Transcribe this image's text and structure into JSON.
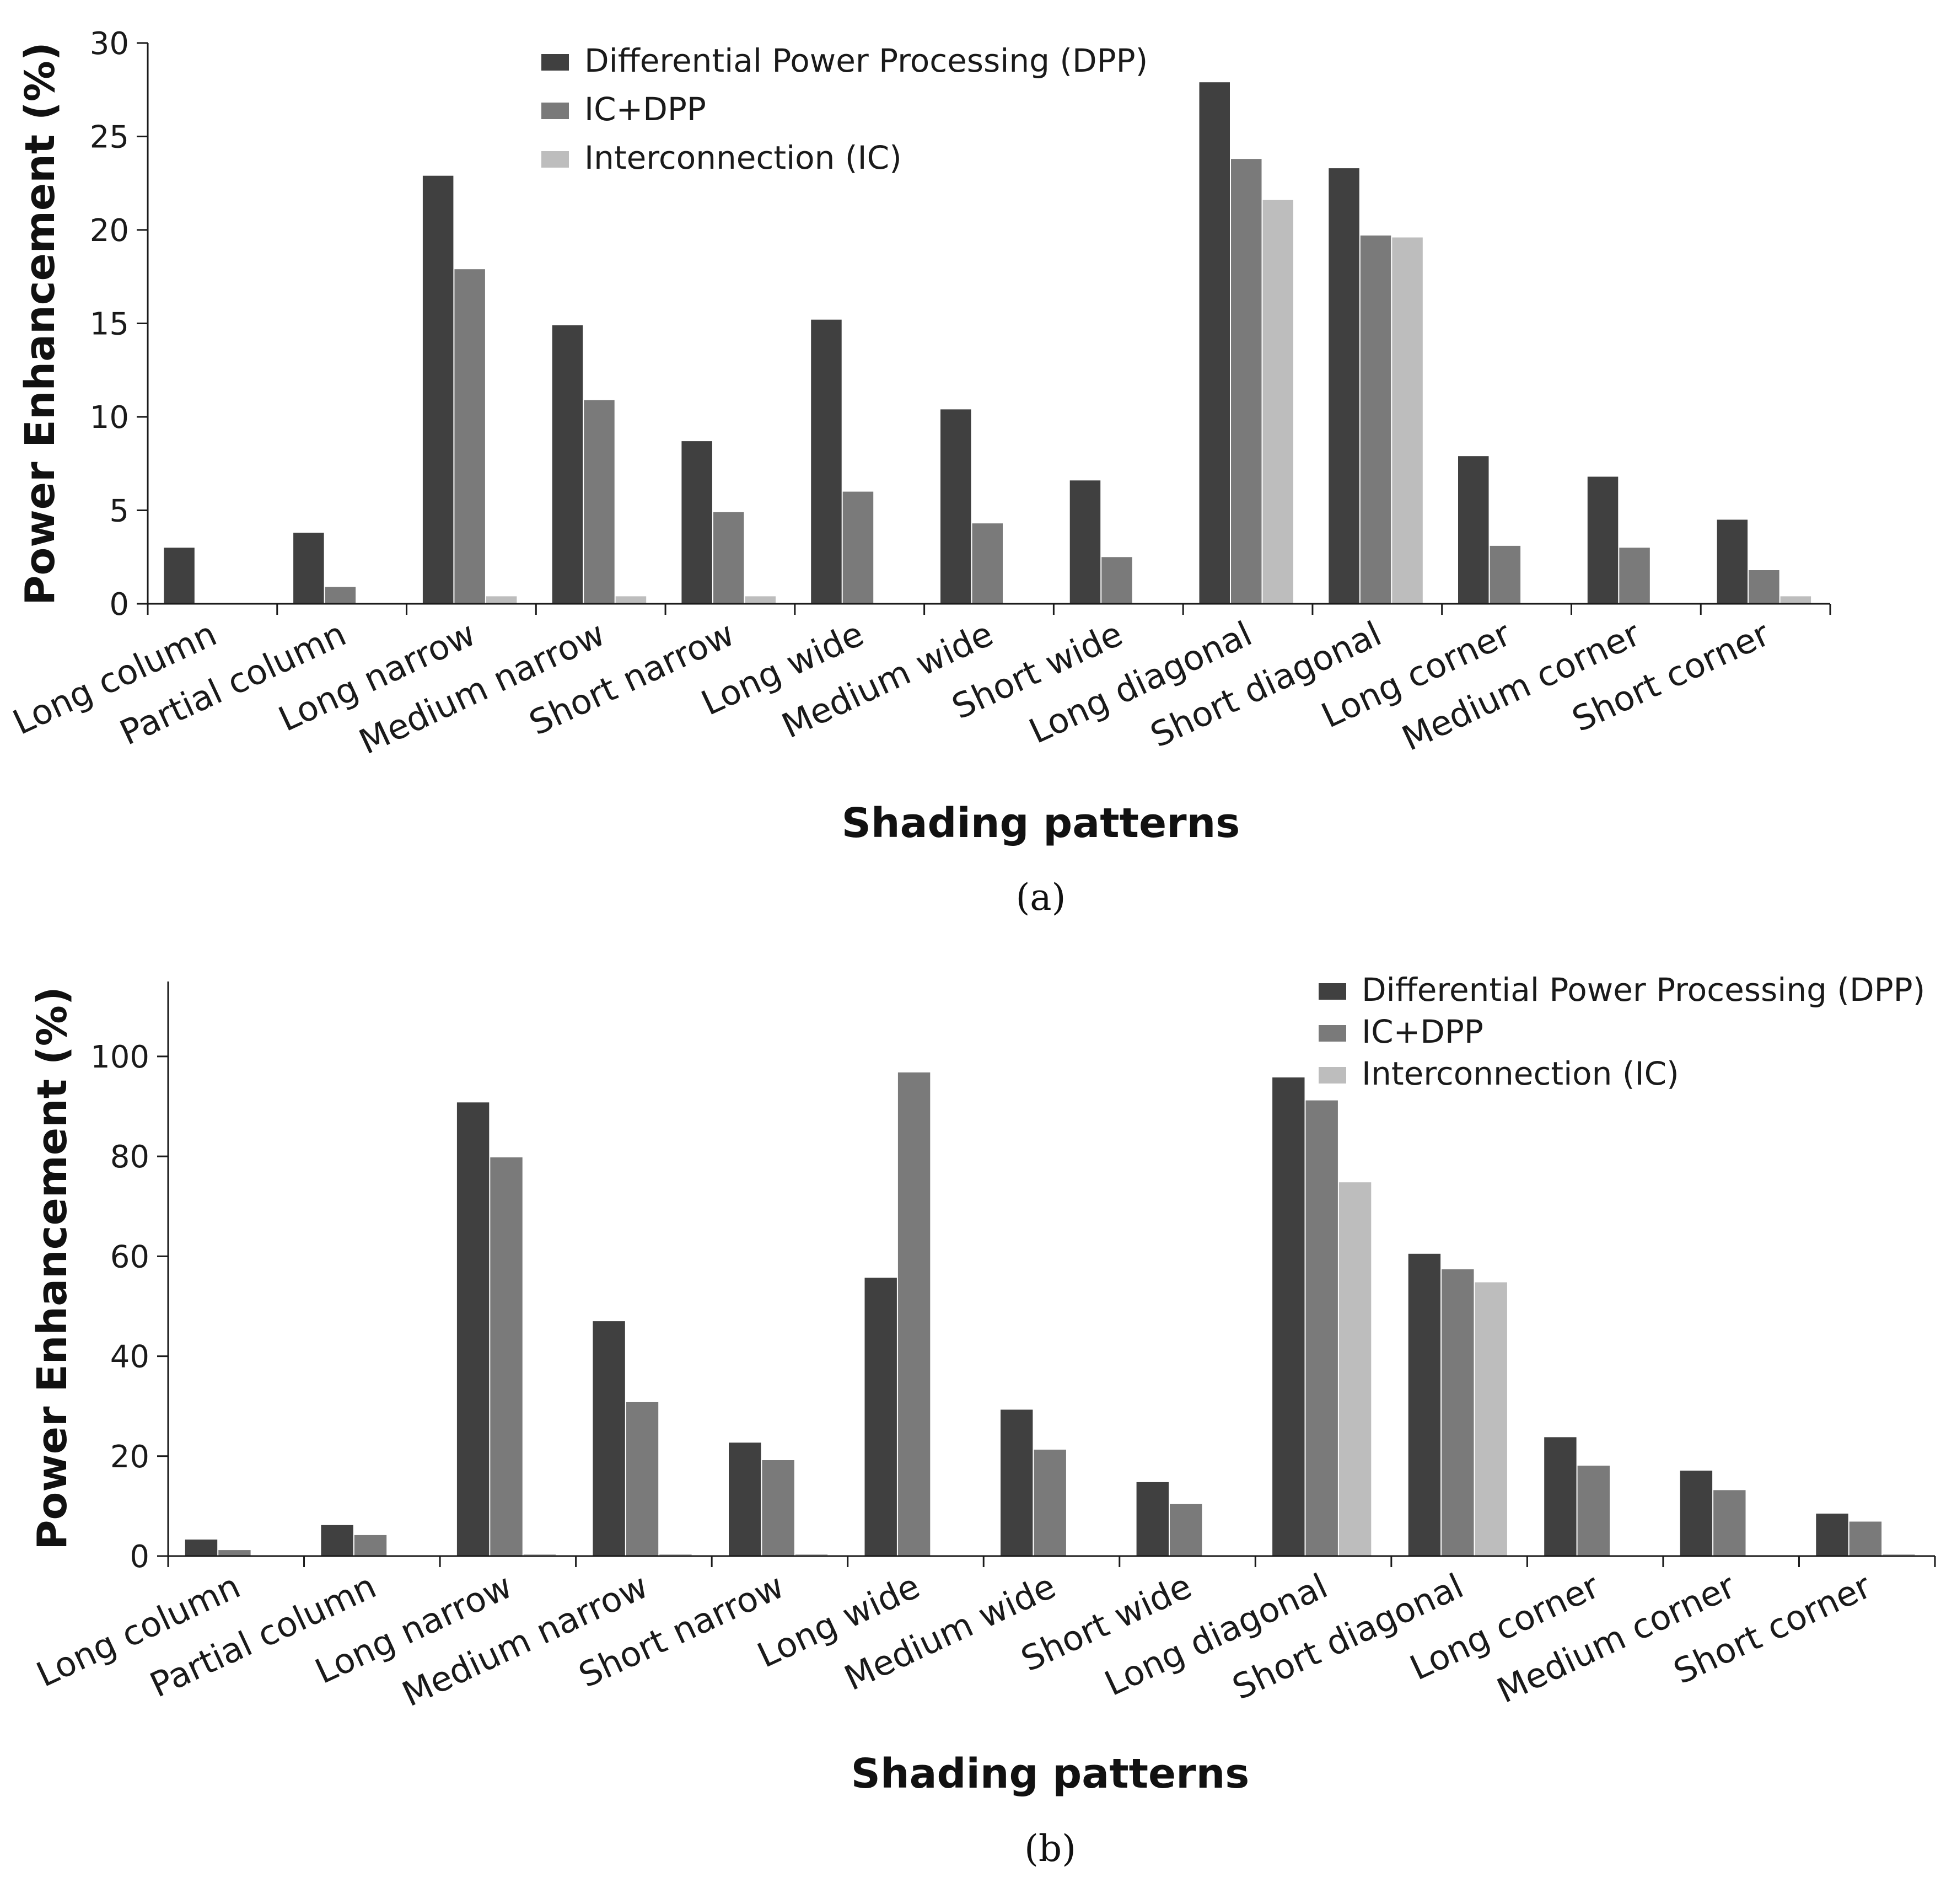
{
  "chart_data": [
    {
      "type": "bar",
      "panel_label": "(a)",
      "xlabel": "Shading patterns",
      "ylabel": "Power Enhancement (%)",
      "ylim": [
        0,
        30
      ],
      "yticks": [
        0,
        5,
        10,
        15,
        20,
        25,
        30
      ],
      "grid": false,
      "legend_position": "top-center",
      "categories": [
        "Long column",
        "Partial column",
        "Long narrow",
        "Medium narrow",
        "Short narrow",
        "Long wide",
        "Medium wide",
        "Short wide",
        "Long diagonal",
        "Short diagonal",
        "Long corner",
        "Medium corner",
        "Short corner"
      ],
      "series": [
        {
          "name": "Differential Power Processing (DPP)",
          "color": "#404040",
          "values": [
            3.0,
            3.8,
            22.9,
            14.9,
            8.7,
            15.2,
            10.4,
            6.6,
            27.9,
            23.3,
            7.9,
            6.8,
            4.5
          ]
        },
        {
          "name": "IC+DPP",
          "color": "#7a7a7a",
          "values": [
            0.0,
            0.9,
            17.9,
            10.9,
            4.9,
            6.0,
            4.3,
            2.5,
            23.8,
            19.7,
            3.1,
            3.0,
            1.8
          ]
        },
        {
          "name": "Interconnection (IC)",
          "color": "#bdbdbd",
          "values": [
            0.0,
            0.0,
            0.4,
            0.4,
            0.4,
            0.0,
            0.0,
            0.0,
            21.6,
            19.6,
            0.0,
            0.0,
            0.4
          ]
        }
      ]
    },
    {
      "type": "bar",
      "panel_label": "(b)",
      "xlabel": "Shading patterns",
      "ylabel": "Power Enhancement (%)",
      "ylim": [
        0,
        115
      ],
      "yticks": [
        0,
        20,
        40,
        60,
        80,
        100
      ],
      "grid": false,
      "legend_position": "top-right",
      "categories": [
        "Long column",
        "Partial column",
        "Long narrow",
        "Medium narrow",
        "Short narrow",
        "Long wide",
        "Medium wide",
        "Short wide",
        "Long diagonal",
        "Short diagonal",
        "Long corner",
        "Medium corner",
        "Short corner"
      ],
      "series": [
        {
          "name": "Differential Power Processing (DPP)",
          "color": "#404040",
          "values": [
            3.3,
            6.2,
            90.8,
            47.0,
            22.7,
            55.7,
            29.3,
            14.8,
            95.8,
            60.5,
            23.8,
            17.1,
            8.5
          ]
        },
        {
          "name": "IC+DPP",
          "color": "#7a7a7a",
          "values": [
            1.2,
            4.2,
            79.8,
            30.8,
            19.2,
            96.8,
            21.3,
            10.4,
            91.2,
            57.4,
            18.1,
            13.2,
            6.9
          ]
        },
        {
          "name": "Interconnection (IC)",
          "color": "#bdbdbd",
          "values": [
            0.0,
            0.0,
            0.4,
            0.4,
            0.4,
            0.0,
            0.0,
            0.0,
            74.8,
            54.8,
            0.0,
            0.0,
            0.4
          ]
        }
      ]
    }
  ]
}
